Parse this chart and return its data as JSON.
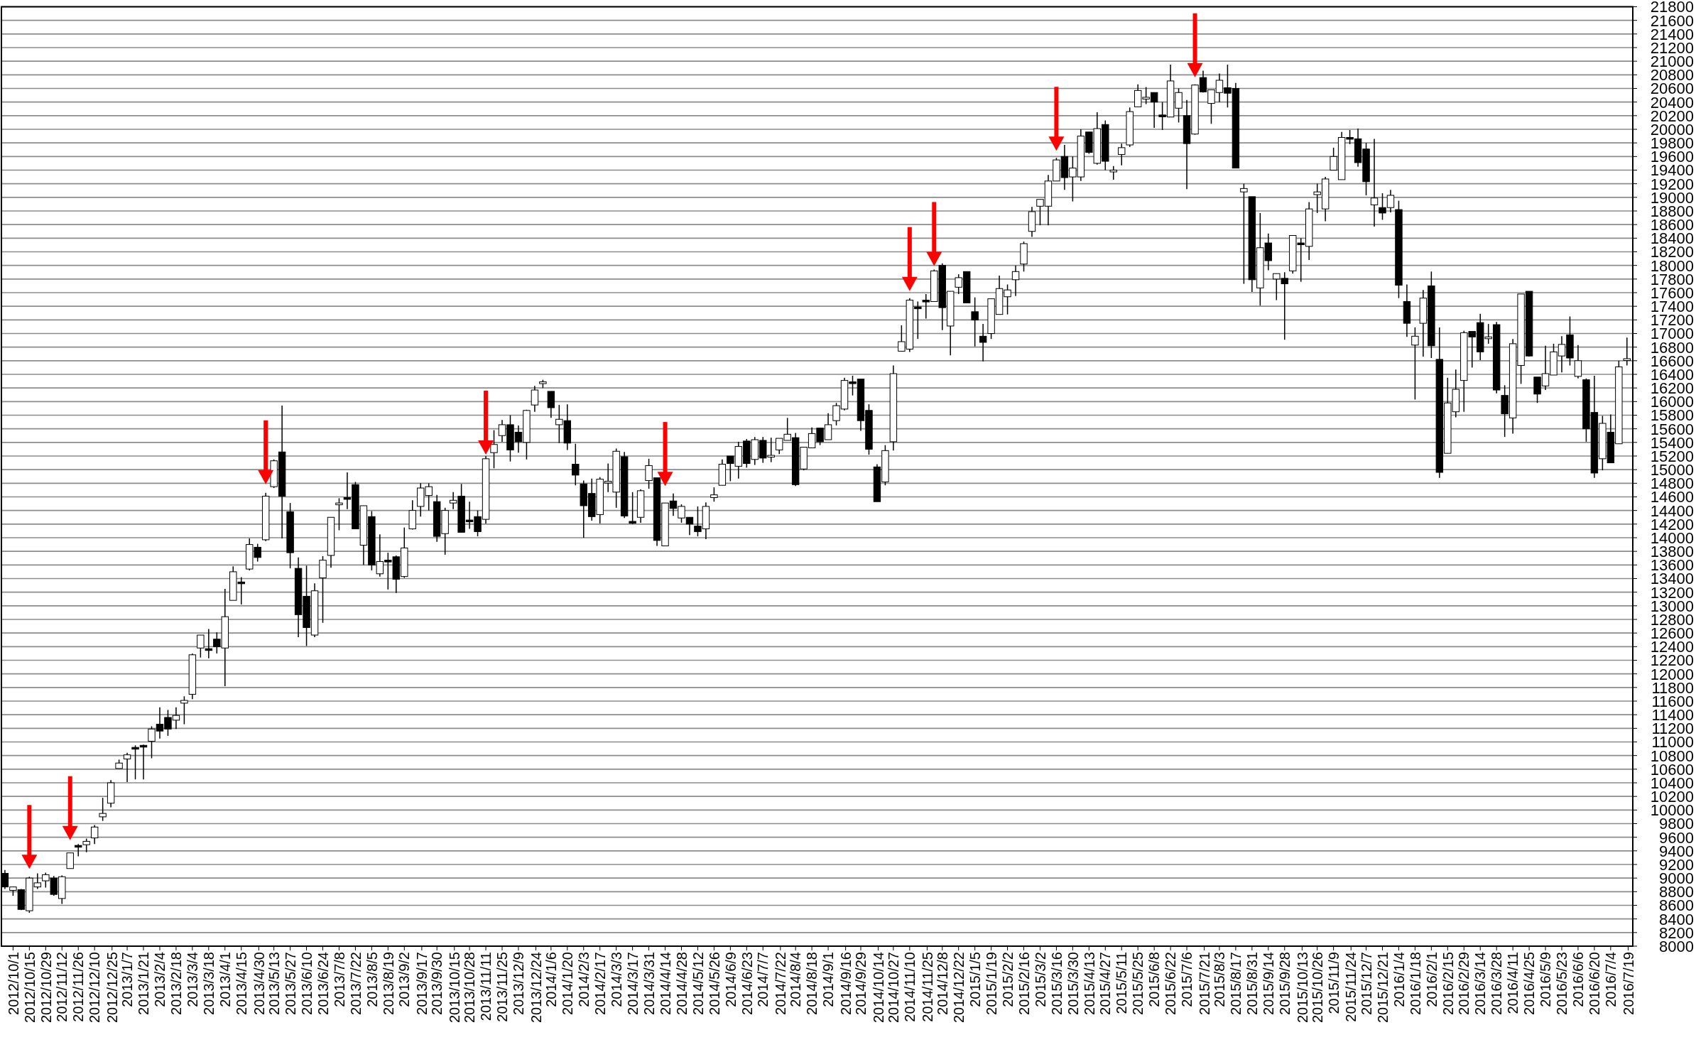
{
  "chart_data": {
    "type": "candlestick",
    "x": [
      "2012-09-24",
      "2012-10-01",
      "2012-10-08",
      "2012-10-15",
      "2012-10-22",
      "2012-10-29",
      "2012-11-05",
      "2012-11-12",
      "2012-11-19",
      "2012-11-26",
      "2012-12-03",
      "2012-12-10",
      "2012-12-17",
      "2012-12-24",
      "2012-12-31",
      "2013-01-07",
      "2013-01-14",
      "2013-01-21",
      "2013-01-28",
      "2013-02-04",
      "2013-02-11",
      "2013-02-18",
      "2013-02-25",
      "2013-03-04",
      "2013-03-11",
      "2013-03-18",
      "2013-03-25",
      "2013-04-01",
      "2013-04-08",
      "2013-04-15",
      "2013-04-22",
      "2013-04-29",
      "2013-05-06",
      "2013-05-13",
      "2013-05-20",
      "2013-05-27",
      "2013-06-03",
      "2013-06-10",
      "2013-06-17",
      "2013-06-24",
      "2013-07-01",
      "2013-07-08",
      "2013-07-15",
      "2013-07-22",
      "2013-07-29",
      "2013-08-05",
      "2013-08-12",
      "2013-08-19",
      "2013-08-26",
      "2013-09-02",
      "2013-09-09",
      "2013-09-16",
      "2013-09-23",
      "2013-09-30",
      "2013-10-07",
      "2013-10-14",
      "2013-10-21",
      "2013-10-28",
      "2013-11-04",
      "2013-11-11",
      "2013-11-18",
      "2013-11-25",
      "2013-12-02",
      "2013-12-09",
      "2013-12-16",
      "2013-12-23",
      "2013-12-30",
      "2014-01-06",
      "2014-01-13",
      "2014-01-20",
      "2014-01-27",
      "2014-02-03",
      "2014-02-10",
      "2014-02-17",
      "2014-02-24",
      "2014-03-03",
      "2014-03-10",
      "2014-03-17",
      "2014-03-24",
      "2014-03-31",
      "2014-04-07",
      "2014-04-14",
      "2014-04-21",
      "2014-04-28",
      "2014-05-05",
      "2014-05-12",
      "2014-05-19",
      "2014-05-26",
      "2014-06-02",
      "2014-06-09",
      "2014-06-16",
      "2014-06-23",
      "2014-06-30",
      "2014-07-07",
      "2014-07-14",
      "2014-07-21",
      "2014-07-28",
      "2014-08-04",
      "2014-08-11",
      "2014-08-18",
      "2014-08-25",
      "2014-09-01",
      "2014-09-08",
      "2014-09-15",
      "2014-09-22",
      "2014-09-29",
      "2014-10-06",
      "2014-10-13",
      "2014-10-20",
      "2014-10-27",
      "2014-11-03",
      "2014-11-10",
      "2014-11-17",
      "2014-11-24",
      "2014-12-01",
      "2014-12-08",
      "2014-12-15",
      "2014-12-22",
      "2014-12-29",
      "2015-01-05",
      "2015-01-12",
      "2015-01-19",
      "2015-01-26",
      "2015-02-02",
      "2015-02-09",
      "2015-02-16",
      "2015-02-23",
      "2015-03-02",
      "2015-03-09",
      "2015-03-16",
      "2015-03-23",
      "2015-03-30",
      "2015-04-06",
      "2015-04-13",
      "2015-04-20",
      "2015-04-27",
      "2015-05-04",
      "2015-05-11",
      "2015-05-18",
      "2015-05-25",
      "2015-06-01",
      "2015-06-08",
      "2015-06-15",
      "2015-06-22",
      "2015-06-29",
      "2015-07-06",
      "2015-07-13",
      "2015-07-20",
      "2015-07-27",
      "2015-08-03",
      "2015-08-10",
      "2015-08-17",
      "2015-08-24",
      "2015-08-31",
      "2015-09-07",
      "2015-09-14",
      "2015-09-21",
      "2015-09-28",
      "2015-10-05",
      "2015-10-12",
      "2015-10-19",
      "2015-10-26",
      "2015-11-02",
      "2015-11-09",
      "2015-11-16",
      "2015-11-23",
      "2015-11-30",
      "2015-12-07",
      "2015-12-14",
      "2015-12-21",
      "2015-12-28",
      "2016-01-04",
      "2016-01-11",
      "2016-01-18",
      "2016-01-25",
      "2016-02-01",
      "2016-02-08",
      "2016-02-15",
      "2016-02-22",
      "2016-02-29",
      "2016-03-07",
      "2016-03-14",
      "2016-03-21",
      "2016-03-28",
      "2016-04-04",
      "2016-04-11",
      "2016-04-18",
      "2016-04-25",
      "2016-05-02",
      "2016-05-09",
      "2016-05-16",
      "2016-05-23",
      "2016-05-30",
      "2016-06-06",
      "2016-06-13",
      "2016-06-20",
      "2016-06-27",
      "2016-07-04",
      "2016-07-11",
      "2016-07-18"
    ],
    "ohlc": [
      [
        9070,
        9120,
        8840,
        8870
      ],
      [
        8820,
        8870,
        8740,
        8870
      ],
      [
        8830,
        8840,
        8530,
        8540
      ],
      [
        8520,
        9020,
        8490,
        9000
      ],
      [
        8870,
        9070,
        8840,
        8930
      ],
      [
        8960,
        9080,
        8860,
        9050
      ],
      [
        9000,
        9030,
        8740,
        8760
      ],
      [
        8700,
        9040,
        8620,
        9020
      ],
      [
        9140,
        9370,
        9140,
        9370
      ],
      [
        9480,
        9500,
        9320,
        9460
      ],
      [
        9490,
        9580,
        9380,
        9540
      ],
      [
        9590,
        9780,
        9500,
        9750
      ],
      [
        9900,
        10180,
        9840,
        9950
      ],
      [
        10100,
        10440,
        10040,
        10400
      ],
      [
        10610,
        10740,
        10610,
        10690
      ],
      [
        10750,
        10840,
        10410,
        10810
      ],
      [
        10920,
        10950,
        10450,
        10900
      ],
      [
        10950,
        10960,
        10450,
        10930
      ],
      [
        11010,
        11230,
        10760,
        11190
      ],
      [
        11260,
        11510,
        11050,
        11160
      ],
      [
        11360,
        11470,
        11090,
        11190
      ],
      [
        11320,
        11510,
        11190,
        11390
      ],
      [
        11570,
        11670,
        11260,
        11610
      ],
      [
        11700,
        12300,
        11630,
        12280
      ],
      [
        12380,
        12570,
        12240,
        12570
      ],
      [
        12370,
        12660,
        12230,
        12350
      ],
      [
        12510,
        12610,
        12300,
        12400
      ],
      [
        12380,
        13250,
        11820,
        12840
      ],
      [
        13080,
        13580,
        13080,
        13500
      ],
      [
        13350,
        13420,
        13020,
        13340
      ],
      [
        13540,
        13990,
        13520,
        13900
      ],
      [
        13860,
        13910,
        13650,
        13710
      ],
      [
        13970,
        14660,
        13950,
        14610
      ],
      [
        14750,
        15150,
        14730,
        15130
      ],
      [
        15260,
        15940,
        13990,
        14610
      ],
      [
        14380,
        14510,
        13550,
        13780
      ],
      [
        13550,
        13710,
        12540,
        12870
      ],
      [
        13140,
        13590,
        12410,
        12680
      ],
      [
        12570,
        13330,
        12540,
        13220
      ],
      [
        13410,
        13730,
        12750,
        13670
      ],
      [
        13740,
        14300,
        13560,
        14300
      ],
      [
        14490,
        14580,
        14110,
        14510
      ],
      [
        14590,
        14960,
        14420,
        14570
      ],
      [
        14780,
        14820,
        14130,
        14130
      ],
      [
        13890,
        14470,
        13600,
        14470
      ],
      [
        14310,
        14390,
        13520,
        13600
      ],
      [
        13470,
        14050,
        13430,
        13650
      ],
      [
        13670,
        13780,
        13240,
        13660
      ],
      [
        13720,
        13740,
        13190,
        13390
      ],
      [
        13430,
        14150,
        13410,
        13850
      ],
      [
        14130,
        14550,
        14120,
        14400
      ],
      [
        14460,
        14800,
        14310,
        14730
      ],
      [
        14620,
        14800,
        14400,
        14750
      ],
      [
        14530,
        14630,
        13940,
        14020
      ],
      [
        14060,
        14440,
        13750,
        14400
      ],
      [
        14510,
        14670,
        14420,
        14550
      ],
      [
        14610,
        14790,
        14080,
        14080
      ],
      [
        14260,
        14530,
        14130,
        14250
      ],
      [
        14310,
        14400,
        14020,
        14090
      ],
      [
        14270,
        15200,
        14210,
        15160
      ],
      [
        15250,
        15580,
        15020,
        15370
      ],
      [
        15500,
        15730,
        15410,
        15660
      ],
      [
        15660,
        15800,
        15120,
        15290
      ],
      [
        15550,
        15650,
        15250,
        15410
      ],
      [
        15400,
        15880,
        15150,
        15870
      ],
      [
        15950,
        16230,
        15850,
        16170
      ],
      [
        16270,
        16320,
        16200,
        16290
      ],
      [
        16150,
        16150,
        15760,
        15910
      ],
      [
        15660,
        15950,
        15390,
        15740
      ],
      [
        15720,
        15960,
        15290,
        15390
      ],
      [
        15080,
        15380,
        14770,
        14920
      ],
      [
        14790,
        14840,
        14000,
        14470
      ],
      [
        14650,
        14870,
        14250,
        14310
      ],
      [
        14340,
        14890,
        14210,
        14860
      ],
      [
        14810,
        15090,
        14670,
        14830
      ],
      [
        14670,
        15310,
        14440,
        15270
      ],
      [
        15190,
        15260,
        14290,
        14320
      ],
      [
        14240,
        14670,
        14200,
        14230
      ],
      [
        14300,
        14710,
        14220,
        14690
      ],
      [
        14840,
        15160,
        14720,
        15060
      ],
      [
        14880,
        14880,
        13880,
        13960
      ],
      [
        13880,
        14510,
        13880,
        14510
      ],
      [
        14540,
        14650,
        14320,
        14430
      ],
      [
        14290,
        14490,
        14220,
        14460
      ],
      [
        14300,
        14300,
        14040,
        14200
      ],
      [
        14170,
        14460,
        14020,
        14090
      ],
      [
        14130,
        14520,
        13980,
        14460
      ],
      [
        14590,
        14740,
        14530,
        14630
      ],
      [
        14770,
        15150,
        14770,
        15080
      ],
      [
        15200,
        15200,
        14830,
        15090
      ],
      [
        15050,
        15410,
        14870,
        15340
      ],
      [
        15420,
        15450,
        15030,
        15090
      ],
      [
        15150,
        15480,
        15070,
        15440
      ],
      [
        15430,
        15480,
        15100,
        15170
      ],
      [
        15190,
        15470,
        15110,
        15210
      ],
      [
        15290,
        15460,
        15230,
        15460
      ],
      [
        15430,
        15760,
        15430,
        15520
      ],
      [
        15470,
        15540,
        14760,
        14780
      ],
      [
        15010,
        15330,
        14990,
        15330
      ],
      [
        15320,
        15620,
        15320,
        15530
      ],
      [
        15610,
        15610,
        15360,
        15410
      ],
      [
        15440,
        15830,
        15440,
        15660
      ],
      [
        15720,
        15980,
        15650,
        15940
      ],
      [
        15890,
        16350,
        15870,
        16310
      ],
      [
        16290,
        16380,
        16090,
        16270
      ],
      [
        16330,
        16330,
        15570,
        15720
      ],
      [
        15870,
        15960,
        15220,
        15300
      ],
      [
        15040,
        15080,
        14530,
        14530
      ],
      [
        14820,
        15360,
        14770,
        15280
      ],
      [
        15410,
        16530,
        15280,
        16410
      ],
      [
        16740,
        17120,
        16740,
        16880
      ],
      [
        16770,
        17520,
        16730,
        17490
      ],
      [
        17390,
        17470,
        16920,
        17370
      ],
      [
        17490,
        17580,
        17220,
        17470
      ],
      [
        17470,
        17940,
        17470,
        17920
      ],
      [
        18000,
        18030,
        17050,
        17380
      ],
      [
        17110,
        17620,
        16680,
        17620
      ],
      [
        17680,
        17870,
        17580,
        17820
      ],
      [
        17910,
        17910,
        17450,
        17450
      ],
      [
        17320,
        17530,
        16810,
        17200
      ],
      [
        16960,
        17140,
        16590,
        16870
      ],
      [
        17000,
        17510,
        16920,
        17510
      ],
      [
        17280,
        17850,
        17280,
        17660
      ],
      [
        17540,
        17720,
        17280,
        17640
      ],
      [
        17790,
        18000,
        17550,
        17910
      ],
      [
        18020,
        18350,
        17910,
        18320
      ],
      [
        18500,
        18860,
        18420,
        18790
      ],
      [
        18870,
        18970,
        18590,
        18970
      ],
      [
        18870,
        19330,
        18590,
        19240
      ],
      [
        19240,
        19580,
        19240,
        19550
      ],
      [
        19600,
        19770,
        19110,
        19290
      ],
      [
        19300,
        19600,
        18940,
        19430
      ],
      [
        19300,
        20000,
        19240,
        19900
      ],
      [
        19960,
        19960,
        19640,
        19660
      ],
      [
        19500,
        20250,
        19480,
        20010
      ],
      [
        20070,
        20130,
        19400,
        19530
      ],
      [
        19380,
        19460,
        19260,
        19400
      ],
      [
        19630,
        19790,
        19470,
        19730
      ],
      [
        19770,
        20320,
        19740,
        20260
      ],
      [
        20330,
        20660,
        20330,
        20570
      ],
      [
        20460,
        20620,
        20370,
        20470
      ],
      [
        20540,
        20540,
        20020,
        20400
      ],
      [
        20210,
        20400,
        19990,
        20200
      ],
      [
        20180,
        20950,
        20180,
        20710
      ],
      [
        20310,
        20600,
        20100,
        20540
      ],
      [
        20200,
        20430,
        19120,
        19790
      ],
      [
        19930,
        20660,
        19920,
        20650
      ],
      [
        20760,
        20860,
        20540,
        20550
      ],
      [
        20380,
        20580,
        20080,
        20580
      ],
      [
        20540,
        20820,
        20400,
        20720
      ],
      [
        20610,
        20950,
        20320,
        20530
      ],
      [
        20600,
        20680,
        19430,
        19430
      ],
      [
        19080,
        19200,
        17730,
        19130
      ],
      [
        19010,
        19010,
        17610,
        17790
      ],
      [
        17670,
        18770,
        17410,
        18260
      ],
      [
        18330,
        18470,
        17930,
        18070
      ],
      [
        17800,
        17880,
        17490,
        17880
      ],
      [
        17810,
        17900,
        16910,
        17730
      ],
      [
        17920,
        18440,
        17880,
        18440
      ],
      [
        18330,
        18400,
        17760,
        18320
      ],
      [
        18280,
        18930,
        18080,
        18830
      ],
      [
        19040,
        19200,
        18770,
        19080
      ],
      [
        18830,
        19300,
        18650,
        19270
      ],
      [
        19400,
        19730,
        19400,
        19600
      ],
      [
        19260,
        19960,
        19260,
        19880
      ],
      [
        19880,
        19990,
        19780,
        19860
      ],
      [
        19860,
        20010,
        19450,
        19510
      ],
      [
        19710,
        19800,
        19030,
        19230
      ],
      [
        18890,
        19860,
        18570,
        18990
      ],
      [
        18850,
        19060,
        18670,
        18770
      ],
      [
        18850,
        19110,
        18780,
        19030
      ],
      [
        18820,
        18950,
        17520,
        17710
      ],
      [
        17470,
        17720,
        16950,
        17150
      ],
      [
        16830,
        17090,
        16030,
        16960
      ],
      [
        17150,
        17640,
        16660,
        17520
      ],
      [
        17700,
        17910,
        16640,
        16820
      ],
      [
        16620,
        17090,
        14880,
        14960
      ],
      [
        15240,
        16350,
        15240,
        15980
      ],
      [
        15850,
        16470,
        15770,
        16180
      ],
      [
        16310,
        17040,
        15850,
        17010
      ],
      [
        17030,
        17030,
        16500,
        16950
      ],
      [
        17160,
        17290,
        16610,
        16730
      ],
      [
        16930,
        17140,
        16850,
        16950
      ],
      [
        17130,
        17170,
        16120,
        16170
      ],
      [
        16090,
        16240,
        15480,
        15820
      ],
      [
        15760,
        16920,
        15530,
        16850
      ],
      [
        16530,
        17580,
        16260,
        17580
      ],
      [
        17620,
        17620,
        16660,
        16670
      ],
      [
        16360,
        16360,
        15980,
        16110
      ],
      [
        16230,
        16820,
        16170,
        16410
      ],
      [
        16390,
        16850,
        16390,
        16730
      ],
      [
        16670,
        16960,
        16430,
        16840
      ],
      [
        16980,
        17250,
        16530,
        16640
      ],
      [
        16370,
        16830,
        16340,
        16600
      ],
      [
        16320,
        16340,
        15410,
        15600
      ],
      [
        15840,
        16380,
        14880,
        14950
      ],
      [
        15160,
        15790,
        14990,
        15680
      ],
      [
        15550,
        15810,
        15100,
        15100
      ],
      [
        15380,
        16600,
        15380,
        16510
      ],
      [
        16610,
        16940,
        16530,
        16630
      ]
    ],
    "xlim": [
      "2012-09-21",
      "2016-07-23"
    ],
    "xticks": [
      {
        "value": "2012-10-01",
        "label": "2012/10/1"
      },
      {
        "value": "2012-10-15",
        "label": "2012/10/15"
      },
      {
        "value": "2012-10-29",
        "label": "2012/10/29"
      },
      {
        "value": "2012-11-12",
        "label": "2012/11/12"
      },
      {
        "value": "2012-11-26",
        "label": "2012/11/26"
      },
      {
        "value": "2012-12-10",
        "label": "2012/12/10"
      },
      {
        "value": "2012-12-25",
        "label": "2012/12/25"
      },
      {
        "value": "2013-01-07",
        "label": "2013/1/7"
      },
      {
        "value": "2013-01-21",
        "label": "2013/1/21"
      },
      {
        "value": "2013-02-04",
        "label": "2013/2/4"
      },
      {
        "value": "2013-02-18",
        "label": "2013/2/18"
      },
      {
        "value": "2013-03-04",
        "label": "2013/3/4"
      },
      {
        "value": "2013-03-18",
        "label": "2013/3/18"
      },
      {
        "value": "2013-04-01",
        "label": "2013/4/1"
      },
      {
        "value": "2013-04-15",
        "label": "2013/4/15"
      },
      {
        "value": "2013-04-30",
        "label": "2013/4/30"
      },
      {
        "value": "2013-05-13",
        "label": "2013/5/13"
      },
      {
        "value": "2013-05-27",
        "label": "2013/5/27"
      },
      {
        "value": "2013-06-10",
        "label": "2013/6/10"
      },
      {
        "value": "2013-06-24",
        "label": "2013/6/24"
      },
      {
        "value": "2013-07-08",
        "label": "2013/7/8"
      },
      {
        "value": "2013-07-22",
        "label": "2013/7/22"
      },
      {
        "value": "2013-08-05",
        "label": "2013/8/5"
      },
      {
        "value": "2013-08-19",
        "label": "2013/8/19"
      },
      {
        "value": "2013-09-02",
        "label": "2013/9/2"
      },
      {
        "value": "2013-09-17",
        "label": "2013/9/17"
      },
      {
        "value": "2013-09-30",
        "label": "2013/9/30"
      },
      {
        "value": "2013-10-15",
        "label": "2013/10/15"
      },
      {
        "value": "2013-10-28",
        "label": "2013/10/28"
      },
      {
        "value": "2013-11-11",
        "label": "2013/11/11"
      },
      {
        "value": "2013-11-25",
        "label": "2013/11/25"
      },
      {
        "value": "2013-12-09",
        "label": "2013/12/9"
      },
      {
        "value": "2013-12-24",
        "label": "2013/12/24"
      },
      {
        "value": "2014-01-06",
        "label": "2014/1/6"
      },
      {
        "value": "2014-01-20",
        "label": "2014/1/20"
      },
      {
        "value": "2014-02-03",
        "label": "2014/2/3"
      },
      {
        "value": "2014-02-17",
        "label": "2014/2/17"
      },
      {
        "value": "2014-03-03",
        "label": "2014/3/3"
      },
      {
        "value": "2014-03-17",
        "label": "2014/3/17"
      },
      {
        "value": "2014-03-31",
        "label": "2014/3/31"
      },
      {
        "value": "2014-04-14",
        "label": "2014/4/14"
      },
      {
        "value": "2014-04-28",
        "label": "2014/4/28"
      },
      {
        "value": "2014-05-12",
        "label": "2014/5/12"
      },
      {
        "value": "2014-05-26",
        "label": "2014/5/26"
      },
      {
        "value": "2014-06-09",
        "label": "2014/6/9"
      },
      {
        "value": "2014-06-23",
        "label": "2014/6/23"
      },
      {
        "value": "2014-07-07",
        "label": "2014/7/7"
      },
      {
        "value": "2014-07-22",
        "label": "2014/7/22"
      },
      {
        "value": "2014-08-04",
        "label": "2014/8/4"
      },
      {
        "value": "2014-08-18",
        "label": "2014/8/18"
      },
      {
        "value": "2014-09-01",
        "label": "2014/9/1"
      },
      {
        "value": "2014-09-16",
        "label": "2014/9/16"
      },
      {
        "value": "2014-09-29",
        "label": "2014/9/29"
      },
      {
        "value": "2014-10-14",
        "label": "2014/10/14"
      },
      {
        "value": "2014-10-27",
        "label": "2014/10/27"
      },
      {
        "value": "2014-11-10",
        "label": "2014/11/10"
      },
      {
        "value": "2014-11-25",
        "label": "2014/11/25"
      },
      {
        "value": "2014-12-08",
        "label": "2014/12/8"
      },
      {
        "value": "2014-12-22",
        "label": "2014/12/22"
      },
      {
        "value": "2015-01-05",
        "label": "2015/1/5"
      },
      {
        "value": "2015-01-19",
        "label": "2015/1/19"
      },
      {
        "value": "2015-02-02",
        "label": "2015/2/2"
      },
      {
        "value": "2015-02-16",
        "label": "2015/2/16"
      },
      {
        "value": "2015-03-02",
        "label": "2015/3/2"
      },
      {
        "value": "2015-03-16",
        "label": "2015/3/16"
      },
      {
        "value": "2015-03-30",
        "label": "2015/3/30"
      },
      {
        "value": "2015-04-13",
        "label": "2015/4/13"
      },
      {
        "value": "2015-04-27",
        "label": "2015/4/27"
      },
      {
        "value": "2015-05-11",
        "label": "2015/5/11"
      },
      {
        "value": "2015-05-25",
        "label": "2015/5/25"
      },
      {
        "value": "2015-06-08",
        "label": "2015/6/8"
      },
      {
        "value": "2015-06-22",
        "label": "2015/6/22"
      },
      {
        "value": "2015-07-06",
        "label": "2015/7/6"
      },
      {
        "value": "2015-07-21",
        "label": "2015/7/21"
      },
      {
        "value": "2015-08-03",
        "label": "2015/8/3"
      },
      {
        "value": "2015-08-17",
        "label": "2015/8/17"
      },
      {
        "value": "2015-08-31",
        "label": "2015/8/31"
      },
      {
        "value": "2015-09-14",
        "label": "2015/9/14"
      },
      {
        "value": "2015-09-28",
        "label": "2015/9/28"
      },
      {
        "value": "2015-10-13",
        "label": "2015/10/13"
      },
      {
        "value": "2015-10-26",
        "label": "2015/10/26"
      },
      {
        "value": "2015-11-09",
        "label": "2015/11/9"
      },
      {
        "value": "2015-11-24",
        "label": "2015/11/24"
      },
      {
        "value": "2015-12-07",
        "label": "2015/12/7"
      },
      {
        "value": "2015-12-21",
        "label": "2015/12/21"
      },
      {
        "value": "2016-01-04",
        "label": "2016/1/4"
      },
      {
        "value": "2016-01-18",
        "label": "2016/1/18"
      },
      {
        "value": "2016-02-01",
        "label": "2016/2/1"
      },
      {
        "value": "2016-02-15",
        "label": "2016/2/15"
      },
      {
        "value": "2016-02-29",
        "label": "2016/2/29"
      },
      {
        "value": "2016-03-14",
        "label": "2016/3/14"
      },
      {
        "value": "2016-03-28",
        "label": "2016/3/28"
      },
      {
        "value": "2016-04-11",
        "label": "2016/4/11"
      },
      {
        "value": "2016-04-25",
        "label": "2016/4/25"
      },
      {
        "value": "2016-05-09",
        "label": "2016/5/9"
      },
      {
        "value": "2016-05-23",
        "label": "2016/5/23"
      },
      {
        "value": "2016-06-06",
        "label": "2016/6/6"
      },
      {
        "value": "2016-06-20",
        "label": "2016/6/20"
      },
      {
        "value": "2016-07-04",
        "label": "2016/7/4"
      },
      {
        "value": "2016-07-19",
        "label": "2016/7/19"
      }
    ],
    "ylim": [
      8000,
      21800
    ],
    "yticks": [
      8000,
      8200,
      8400,
      8600,
      8800,
      9000,
      9200,
      9400,
      9600,
      9800,
      10000,
      10200,
      10400,
      10600,
      10800,
      11000,
      11200,
      11400,
      11600,
      11800,
      12000,
      12200,
      12400,
      12600,
      12800,
      13000,
      13200,
      13400,
      13600,
      13800,
      14000,
      14200,
      14400,
      14600,
      14800,
      15000,
      15200,
      15400,
      15600,
      15800,
      16000,
      16200,
      16400,
      16600,
      16800,
      17000,
      17200,
      17400,
      17600,
      17800,
      18000,
      18200,
      18400,
      18600,
      18800,
      19000,
      19200,
      19400,
      19600,
      19800,
      20000,
      20200,
      20400,
      20600,
      20800,
      21000,
      21200,
      21400,
      21600,
      21800
    ],
    "grid": "y"
  }
}
